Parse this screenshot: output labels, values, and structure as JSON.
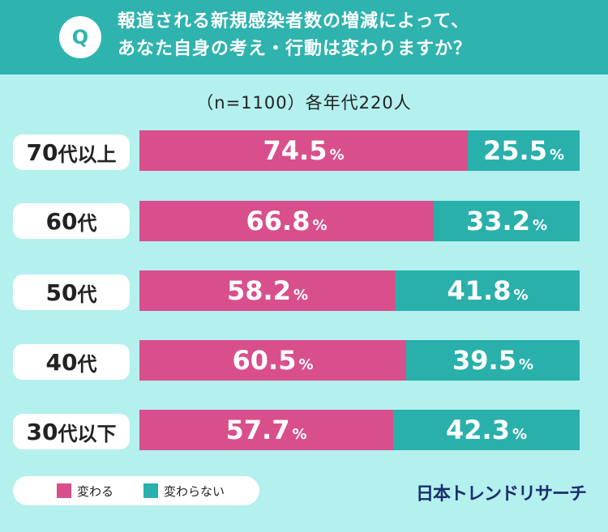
{
  "question": {
    "badge": "Q",
    "line1": "報道される新規感染者数の増減によって、",
    "line2": "あなた自身の考え・行動は変わりますか？"
  },
  "subtitle": "（n=1100）各年代220人",
  "colors": {
    "header_bg": "#2fb3ae",
    "page_bg": "#b3f0ee",
    "change": "#d94f8c",
    "no_change": "#2ab0ab",
    "brand": "#1a2f6b"
  },
  "chart_data": {
    "type": "bar",
    "orientation": "horizontal",
    "stacked": true,
    "percent_stacked": true,
    "title": "報道される新規感染者数の増減によって、あなた自身の考え・行動は変わりますか？",
    "subtitle": "（n=1100）各年代220人",
    "categories": [
      {
        "num": "70",
        "suffix": "代以上"
      },
      {
        "num": "60",
        "suffix": "代"
      },
      {
        "num": "50",
        "suffix": "代"
      },
      {
        "num": "40",
        "suffix": "代"
      },
      {
        "num": "30",
        "suffix": "代以下"
      }
    ],
    "series": [
      {
        "name": "変わる",
        "values": [
          74.5,
          66.8,
          58.2,
          60.5,
          57.7
        ],
        "labels": [
          "74.5",
          "66.8",
          "58.2",
          "60.5",
          "57.7"
        ]
      },
      {
        "name": "変わらない",
        "values": [
          25.5,
          33.2,
          41.8,
          39.5,
          42.3
        ],
        "labels": [
          "25.5",
          "33.2",
          "41.8",
          "39.5",
          "42.3"
        ]
      }
    ],
    "unit": "%",
    "xlim": [
      0,
      100
    ],
    "legend": "bottom-left"
  },
  "legend": {
    "items": [
      {
        "label": "変わる"
      },
      {
        "label": "変わらない"
      }
    ]
  },
  "brand": "日本トレンドリサーチ"
}
